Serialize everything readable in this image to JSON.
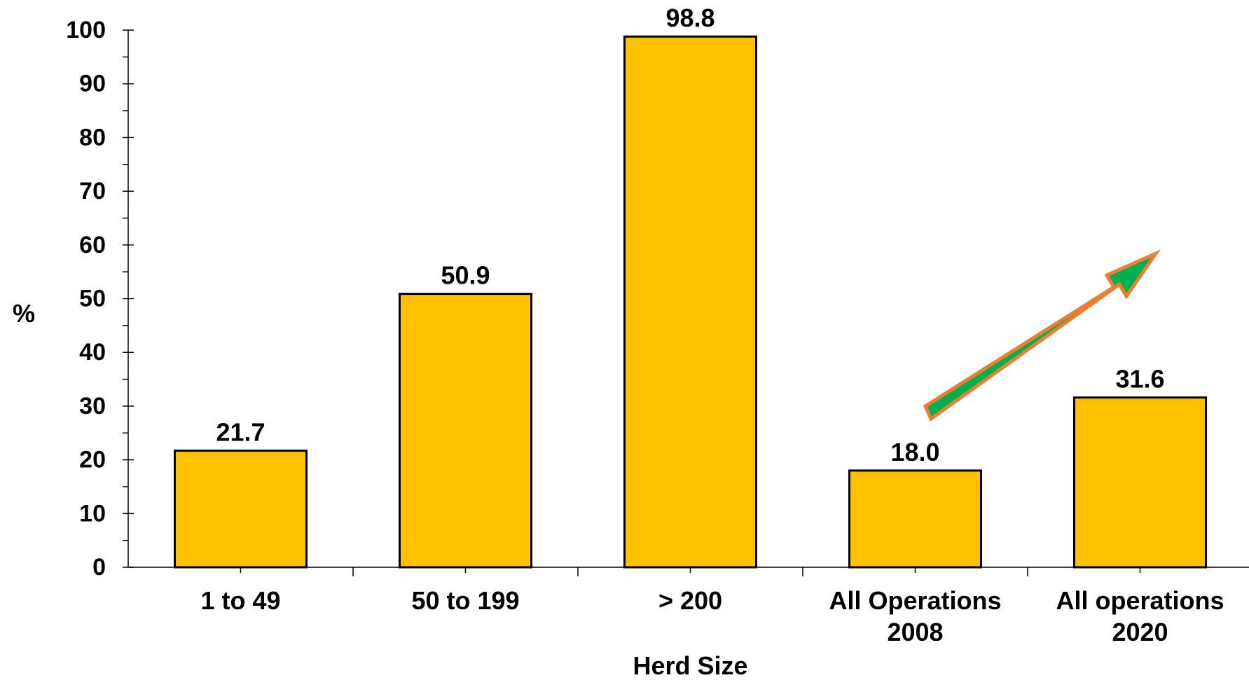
{
  "chart_data": {
    "type": "bar",
    "categories": [
      [
        "1 to 49"
      ],
      [
        "50 to 199"
      ],
      [
        "> 200"
      ],
      [
        "All Operations",
        "2008"
      ],
      [
        "All operations",
        "2020"
      ]
    ],
    "values": [
      21.7,
      50.9,
      98.8,
      18.0,
      31.6
    ],
    "value_labels": [
      "21.7",
      "50.9",
      "98.8",
      "18.0",
      "31.6"
    ],
    "title": "",
    "xlabel": "Herd Size",
    "ylabel": "%",
    "ylim": [
      0,
      100
    ],
    "yticks": [
      0,
      10,
      20,
      30,
      40,
      50,
      60,
      70,
      80,
      90,
      100
    ],
    "grid": false,
    "bar_color": "#FFC000",
    "bar_edge_color": "#000000",
    "annotations": [
      {
        "type": "arrow",
        "direction": "up-right",
        "from_category": 3,
        "to_category": 4,
        "fill_color": "#00B050",
        "edge_color": "#ED7D31"
      }
    ]
  }
}
